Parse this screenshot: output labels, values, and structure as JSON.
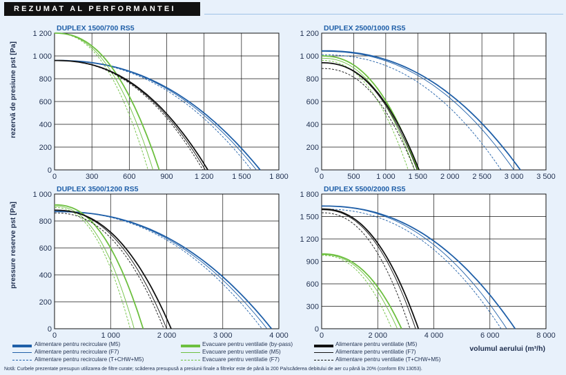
{
  "header": {
    "title": "REZUMAT AL PERFORMANTEI"
  },
  "axis_labels": {
    "ylabel_top": "rezervă de presiune pst [Pa]",
    "ylabel_bottom": "pressure reserve pst [Pa]",
    "xlabel": "volumul aerului (m³/h)"
  },
  "colors": {
    "blue": "#1f5fa8",
    "green": "#6cbf3e",
    "black": "#111111"
  },
  "legend": [
    {
      "label": "Alimentare pentru recirculare (M5)",
      "color": "#1f5fa8",
      "style": "thick"
    },
    {
      "label": "Alimentare pentru recirculare (F7)",
      "color": "#1f5fa8",
      "style": "thin"
    },
    {
      "label": "Alimentare pentru recirculare (T+CHW+M5)",
      "color": "#1f5fa8",
      "style": "dashed"
    },
    {
      "label": "Evacuare pentru ventilatie (by-pass)",
      "color": "#6cbf3e",
      "style": "thick"
    },
    {
      "label": "Evacuare pentru ventilatie (M5)",
      "color": "#6cbf3e",
      "style": "thin"
    },
    {
      "label": "Evacuare pentru ventilatie (F7)",
      "color": "#6cbf3e",
      "style": "dashed"
    },
    {
      "label": "Alimentare pentru ventilatie (M5)",
      "color": "#111111",
      "style": "thick"
    },
    {
      "label": "Alimentare pentru ventilatie (F7)",
      "color": "#111111",
      "style": "thin"
    },
    {
      "label": "Alimentare pentru ventilatie (T+CHW+M5)",
      "color": "#111111",
      "style": "dashed"
    }
  ],
  "note": "Notă: Curbele prezentate presupun utilizarea de filtre curate; scăderea presupusă a presiunii finale a filtrelor este de până la 200 Pa/scăderea debitului de aer cu până la 20% (conform EN 13053).",
  "chart_data": [
    {
      "type": "line",
      "title": "DUPLEX 1500/700 RS5",
      "xlim": [
        0,
        1800
      ],
      "ylim": [
        0,
        1200
      ],
      "xticks": [
        0,
        300,
        600,
        900,
        1200,
        1500,
        1800
      ],
      "xtick_labels": [
        "0",
        "300",
        "600",
        "900",
        "1 200",
        "1 500",
        "1 800"
      ],
      "yticks": [
        0,
        200,
        400,
        600,
        800,
        1000,
        1200
      ],
      "ytick_labels": [
        "0",
        "200",
        "400",
        "600",
        "800",
        "1 000",
        "1 200"
      ],
      "grid": true,
      "series": [
        {
          "color": "#1f5fa8",
          "style": "thick",
          "y0": 960,
          "xend": 1650
        },
        {
          "color": "#1f5fa8",
          "style": "thin",
          "y0": 960,
          "xend": 1620
        },
        {
          "color": "#1f5fa8",
          "style": "dashed",
          "y0": 960,
          "xend": 1580
        },
        {
          "color": "#6cbf3e",
          "style": "thick",
          "y0": 1200,
          "xend": 840
        },
        {
          "color": "#6cbf3e",
          "style": "thin",
          "y0": 1200,
          "xend": 790
        },
        {
          "color": "#6cbf3e",
          "style": "dashed",
          "y0": 1200,
          "xend": 750
        },
        {
          "color": "#111111",
          "style": "thick",
          "y0": 960,
          "xend": 1230
        },
        {
          "color": "#111111",
          "style": "thin",
          "y0": 960,
          "xend": 1210
        },
        {
          "color": "#111111",
          "style": "dashed",
          "y0": 960,
          "xend": 1190
        }
      ]
    },
    {
      "type": "line",
      "title": "DUPLEX 2500/1000 RS5",
      "xlim": [
        0,
        3500
      ],
      "ylim": [
        0,
        1200
      ],
      "xticks": [
        0,
        500,
        1000,
        1500,
        2000,
        2500,
        3000,
        3500
      ],
      "xtick_labels": [
        "0",
        "500",
        "1 000",
        "1 500",
        "2 000",
        "2 500",
        "3 000",
        "3 500"
      ],
      "yticks": [
        0,
        200,
        400,
        600,
        800,
        1000,
        1200
      ],
      "ytick_labels": [
        "0",
        "200",
        "400",
        "600",
        "800",
        "1 000",
        "1 200"
      ],
      "grid": true,
      "series": [
        {
          "color": "#1f5fa8",
          "style": "thick",
          "y0": 1045,
          "xend": 3100
        },
        {
          "color": "#1f5fa8",
          "style": "thin",
          "y0": 1040,
          "xend": 3000
        },
        {
          "color": "#1f5fa8",
          "style": "dashed",
          "y0": 1010,
          "xend": 2800
        },
        {
          "color": "#6cbf3e",
          "style": "thick",
          "y0": 1000,
          "xend": 1500
        },
        {
          "color": "#6cbf3e",
          "style": "thin",
          "y0": 980,
          "xend": 1450
        },
        {
          "color": "#6cbf3e",
          "style": "dashed",
          "y0": 960,
          "xend": 1350
        },
        {
          "color": "#111111",
          "style": "thick",
          "y0": 940,
          "xend": 1520
        },
        {
          "color": "#111111",
          "style": "thin",
          "y0": 940,
          "xend": 1490
        },
        {
          "color": "#111111",
          "style": "dashed",
          "y0": 890,
          "xend": 1450
        }
      ]
    },
    {
      "type": "line",
      "title": "DUPLEX 3500/1200 RS5",
      "xlim": [
        0,
        4000
      ],
      "ylim": [
        0,
        1000
      ],
      "xticks": [
        0,
        1000,
        2000,
        3000,
        4000
      ],
      "xtick_labels": [
        "0",
        "1 000",
        "2 000",
        "3 000",
        "4 000"
      ],
      "yticks": [
        0,
        200,
        400,
        600,
        800,
        1000
      ],
      "ytick_labels": [
        "0",
        "200",
        "400",
        "600",
        "800",
        "1 000"
      ],
      "grid": true,
      "series": [
        {
          "color": "#1f5fa8",
          "style": "thick",
          "y0": 870,
          "xend": 3870
        },
        {
          "color": "#1f5fa8",
          "style": "thin",
          "y0": 870,
          "xend": 3790
        },
        {
          "color": "#1f5fa8",
          "style": "dashed",
          "y0": 870,
          "xend": 3700
        },
        {
          "color": "#6cbf3e",
          "style": "thick",
          "y0": 920,
          "xend": 1580
        },
        {
          "color": "#6cbf3e",
          "style": "thin",
          "y0": 910,
          "xend": 1420
        },
        {
          "color": "#6cbf3e",
          "style": "dashed",
          "y0": 900,
          "xend": 1350
        },
        {
          "color": "#111111",
          "style": "thick",
          "y0": 880,
          "xend": 2080
        },
        {
          "color": "#111111",
          "style": "thin",
          "y0": 880,
          "xend": 2000
        },
        {
          "color": "#111111",
          "style": "dashed",
          "y0": 860,
          "xend": 1950
        }
      ]
    },
    {
      "type": "line",
      "title": "DUPLEX 5500/2000 RS5",
      "xlim": [
        0,
        8000
      ],
      "ylim": [
        0,
        1800
      ],
      "xticks": [
        0,
        2000,
        4000,
        6000,
        8000
      ],
      "xtick_labels": [
        "0",
        "2 000",
        "4 000",
        "6 000",
        "8 000"
      ],
      "yticks": [
        0,
        300,
        600,
        900,
        1200,
        1500,
        1800
      ],
      "ytick_labels": [
        "0",
        "300",
        "600",
        "900",
        "1 200",
        "1 500",
        "1 800"
      ],
      "grid": true,
      "series": [
        {
          "color": "#1f5fa8",
          "style": "thick",
          "y0": 1640,
          "xend": 6900
        },
        {
          "color": "#1f5fa8",
          "style": "thin",
          "y0": 1640,
          "xend": 6600
        },
        {
          "color": "#1f5fa8",
          "style": "dashed",
          "y0": 1600,
          "xend": 6400
        },
        {
          "color": "#6cbf3e",
          "style": "thick",
          "y0": 1000,
          "xend": 2850
        },
        {
          "color": "#6cbf3e",
          "style": "thin",
          "y0": 990,
          "xend": 2700
        },
        {
          "color": "#6cbf3e",
          "style": "dashed",
          "y0": 980,
          "xend": 2500
        },
        {
          "color": "#111111",
          "style": "thick",
          "y0": 1600,
          "xend": 3450
        },
        {
          "color": "#111111",
          "style": "thin",
          "y0": 1590,
          "xend": 3350
        },
        {
          "color": "#111111",
          "style": "dashed",
          "y0": 1550,
          "xend": 3150
        }
      ]
    }
  ]
}
